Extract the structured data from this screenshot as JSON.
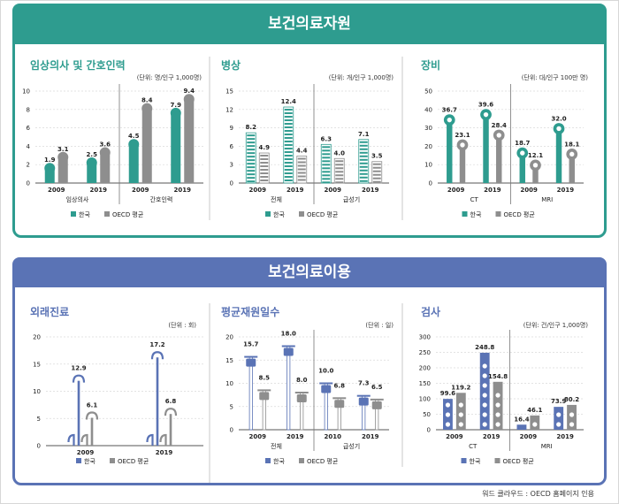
{
  "colors": {
    "teal": "#2e9c8f",
    "blue": "#5a73b5",
    "gray": "#8e8e8e"
  },
  "sections": [
    {
      "title": "보건의료자원"
    },
    {
      "title": "보건의료이용"
    }
  ],
  "legend": {
    "korea": "한국",
    "oecd": "OECD 평균"
  },
  "source_note": "워드 클라우드 : OECD 홈페이지 인용",
  "chart_data": [
    {
      "type": "bar",
      "section": 0,
      "title": "임상의사 및 간호인력",
      "unit": "(단위: 명/인구 1,000명)",
      "ylim": [
        0,
        10
      ],
      "yticks": [
        "0",
        "2",
        "4",
        "6",
        "8",
        "10"
      ],
      "groups": [
        {
          "label": "임상의사",
          "years": [
            "2009",
            "2019"
          ],
          "korea": [
            1.9,
            2.5
          ],
          "oecd": [
            3.1,
            3.6
          ],
          "korea_labels": [
            "1.9",
            "2.5"
          ],
          "oecd_labels": [
            "3.1",
            "3.6"
          ]
        },
        {
          "label": "간호인력",
          "years": [
            "2009",
            "2019"
          ],
          "korea": [
            4.5,
            7.9
          ],
          "oecd": [
            8.4,
            9.4
          ],
          "korea_labels": [
            "4.5",
            "7.9"
          ],
          "oecd_labels": [
            "8.4",
            "9.4"
          ]
        }
      ]
    },
    {
      "type": "bar",
      "section": 0,
      "title": "병상",
      "unit": "(단위: 개/인구 1,000명)",
      "ylim": [
        0,
        15
      ],
      "yticks": [
        "0",
        "3",
        "6",
        "9",
        "12",
        "15"
      ],
      "groups": [
        {
          "label": "전체",
          "years": [
            "2009",
            "2019"
          ],
          "korea": [
            8.2,
            12.4
          ],
          "oecd": [
            4.9,
            4.4
          ],
          "korea_labels": [
            "8.2",
            "12.4"
          ],
          "oecd_labels": [
            "4.9",
            "4.4"
          ]
        },
        {
          "label": "급성기",
          "years": [
            "2009",
            "2019"
          ],
          "korea": [
            6.3,
            7.1
          ],
          "oecd": [
            4.0,
            3.5
          ],
          "korea_labels": [
            "6.3",
            "7.1"
          ],
          "oecd_labels": [
            "4.0",
            "3.5"
          ]
        }
      ]
    },
    {
      "type": "bar",
      "section": 0,
      "title": "장비",
      "unit": "(단위: 대/인구 100만 명)",
      "ylim": [
        0,
        50
      ],
      "yticks": [
        "0",
        "10",
        "20",
        "30",
        "40",
        "50"
      ],
      "groups": [
        {
          "label": "CT",
          "years": [
            "2009",
            "2019"
          ],
          "korea": [
            36.7,
            39.6
          ],
          "oecd": [
            23.1,
            28.4
          ],
          "korea_labels": [
            "36.7",
            "39.6"
          ],
          "oecd_labels": [
            "23.1",
            "28.4"
          ]
        },
        {
          "label": "MRI",
          "years": [
            "2009",
            "2019"
          ],
          "korea": [
            18.7,
            32.0
          ],
          "oecd": [
            12.1,
            18.1
          ],
          "korea_labels": [
            "18.7",
            "32.0"
          ],
          "oecd_labels": [
            "12.1",
            "18.1"
          ]
        }
      ]
    },
    {
      "type": "bar",
      "section": 1,
      "title": "외래진료",
      "unit": "(단위 : 회)",
      "ylim": [
        0,
        20
      ],
      "yticks": [
        "0",
        "5",
        "10",
        "15",
        "20"
      ],
      "groups": [
        {
          "label": "",
          "years": [
            "2009",
            "2019"
          ],
          "korea": [
            12.9,
            17.2
          ],
          "oecd": [
            6.1,
            6.8
          ],
          "korea_labels": [
            "12.9",
            "17.2"
          ],
          "oecd_labels": [
            "6.1",
            "6.8"
          ],
          "single_year_axis": true
        }
      ]
    },
    {
      "type": "bar",
      "section": 1,
      "title": "평균재원일수",
      "unit": "(단위 : 일)",
      "ylim": [
        0,
        20
      ],
      "yticks": [
        "0",
        "5",
        "10",
        "15",
        "20"
      ],
      "groups": [
        {
          "label": "전체",
          "years": [
            "2009",
            "2019"
          ],
          "korea": [
            15.7,
            18.0
          ],
          "oecd": [
            8.5,
            8.0
          ],
          "korea_labels": [
            "15.7",
            "18.0"
          ],
          "oecd_labels": [
            "8.5",
            "8.0"
          ]
        },
        {
          "label": "급성기",
          "years": [
            "2010",
            "2019"
          ],
          "korea": [
            10.0,
            7.3
          ],
          "oecd": [
            6.8,
            6.5
          ],
          "korea_labels": [
            "10.0",
            "7.3"
          ],
          "oecd_labels": [
            "6.8",
            "6.5"
          ]
        }
      ]
    },
    {
      "type": "bar",
      "section": 1,
      "title": "검사",
      "unit": "(단위: 건/인구 1,000명)",
      "ylim": [
        0,
        300
      ],
      "yticks": [
        "0",
        "50",
        "100",
        "150",
        "200",
        "250",
        "300"
      ],
      "groups": [
        {
          "label": "CT",
          "years": [
            "2009",
            "2019"
          ],
          "korea": [
            99.6,
            248.8
          ],
          "oecd": [
            119.2,
            154.8
          ],
          "korea_labels": [
            "99.6",
            "248.8"
          ],
          "oecd_labels": [
            "119.2",
            "154.8"
          ]
        },
        {
          "label": "MRI",
          "years": [
            "2009",
            "2019"
          ],
          "korea": [
            16.4,
            73.9
          ],
          "oecd": [
            46.1,
            80.2
          ],
          "korea_labels": [
            "16.4",
            "73.9"
          ],
          "oecd_labels": [
            "46.1",
            "80.2"
          ]
        }
      ]
    }
  ]
}
